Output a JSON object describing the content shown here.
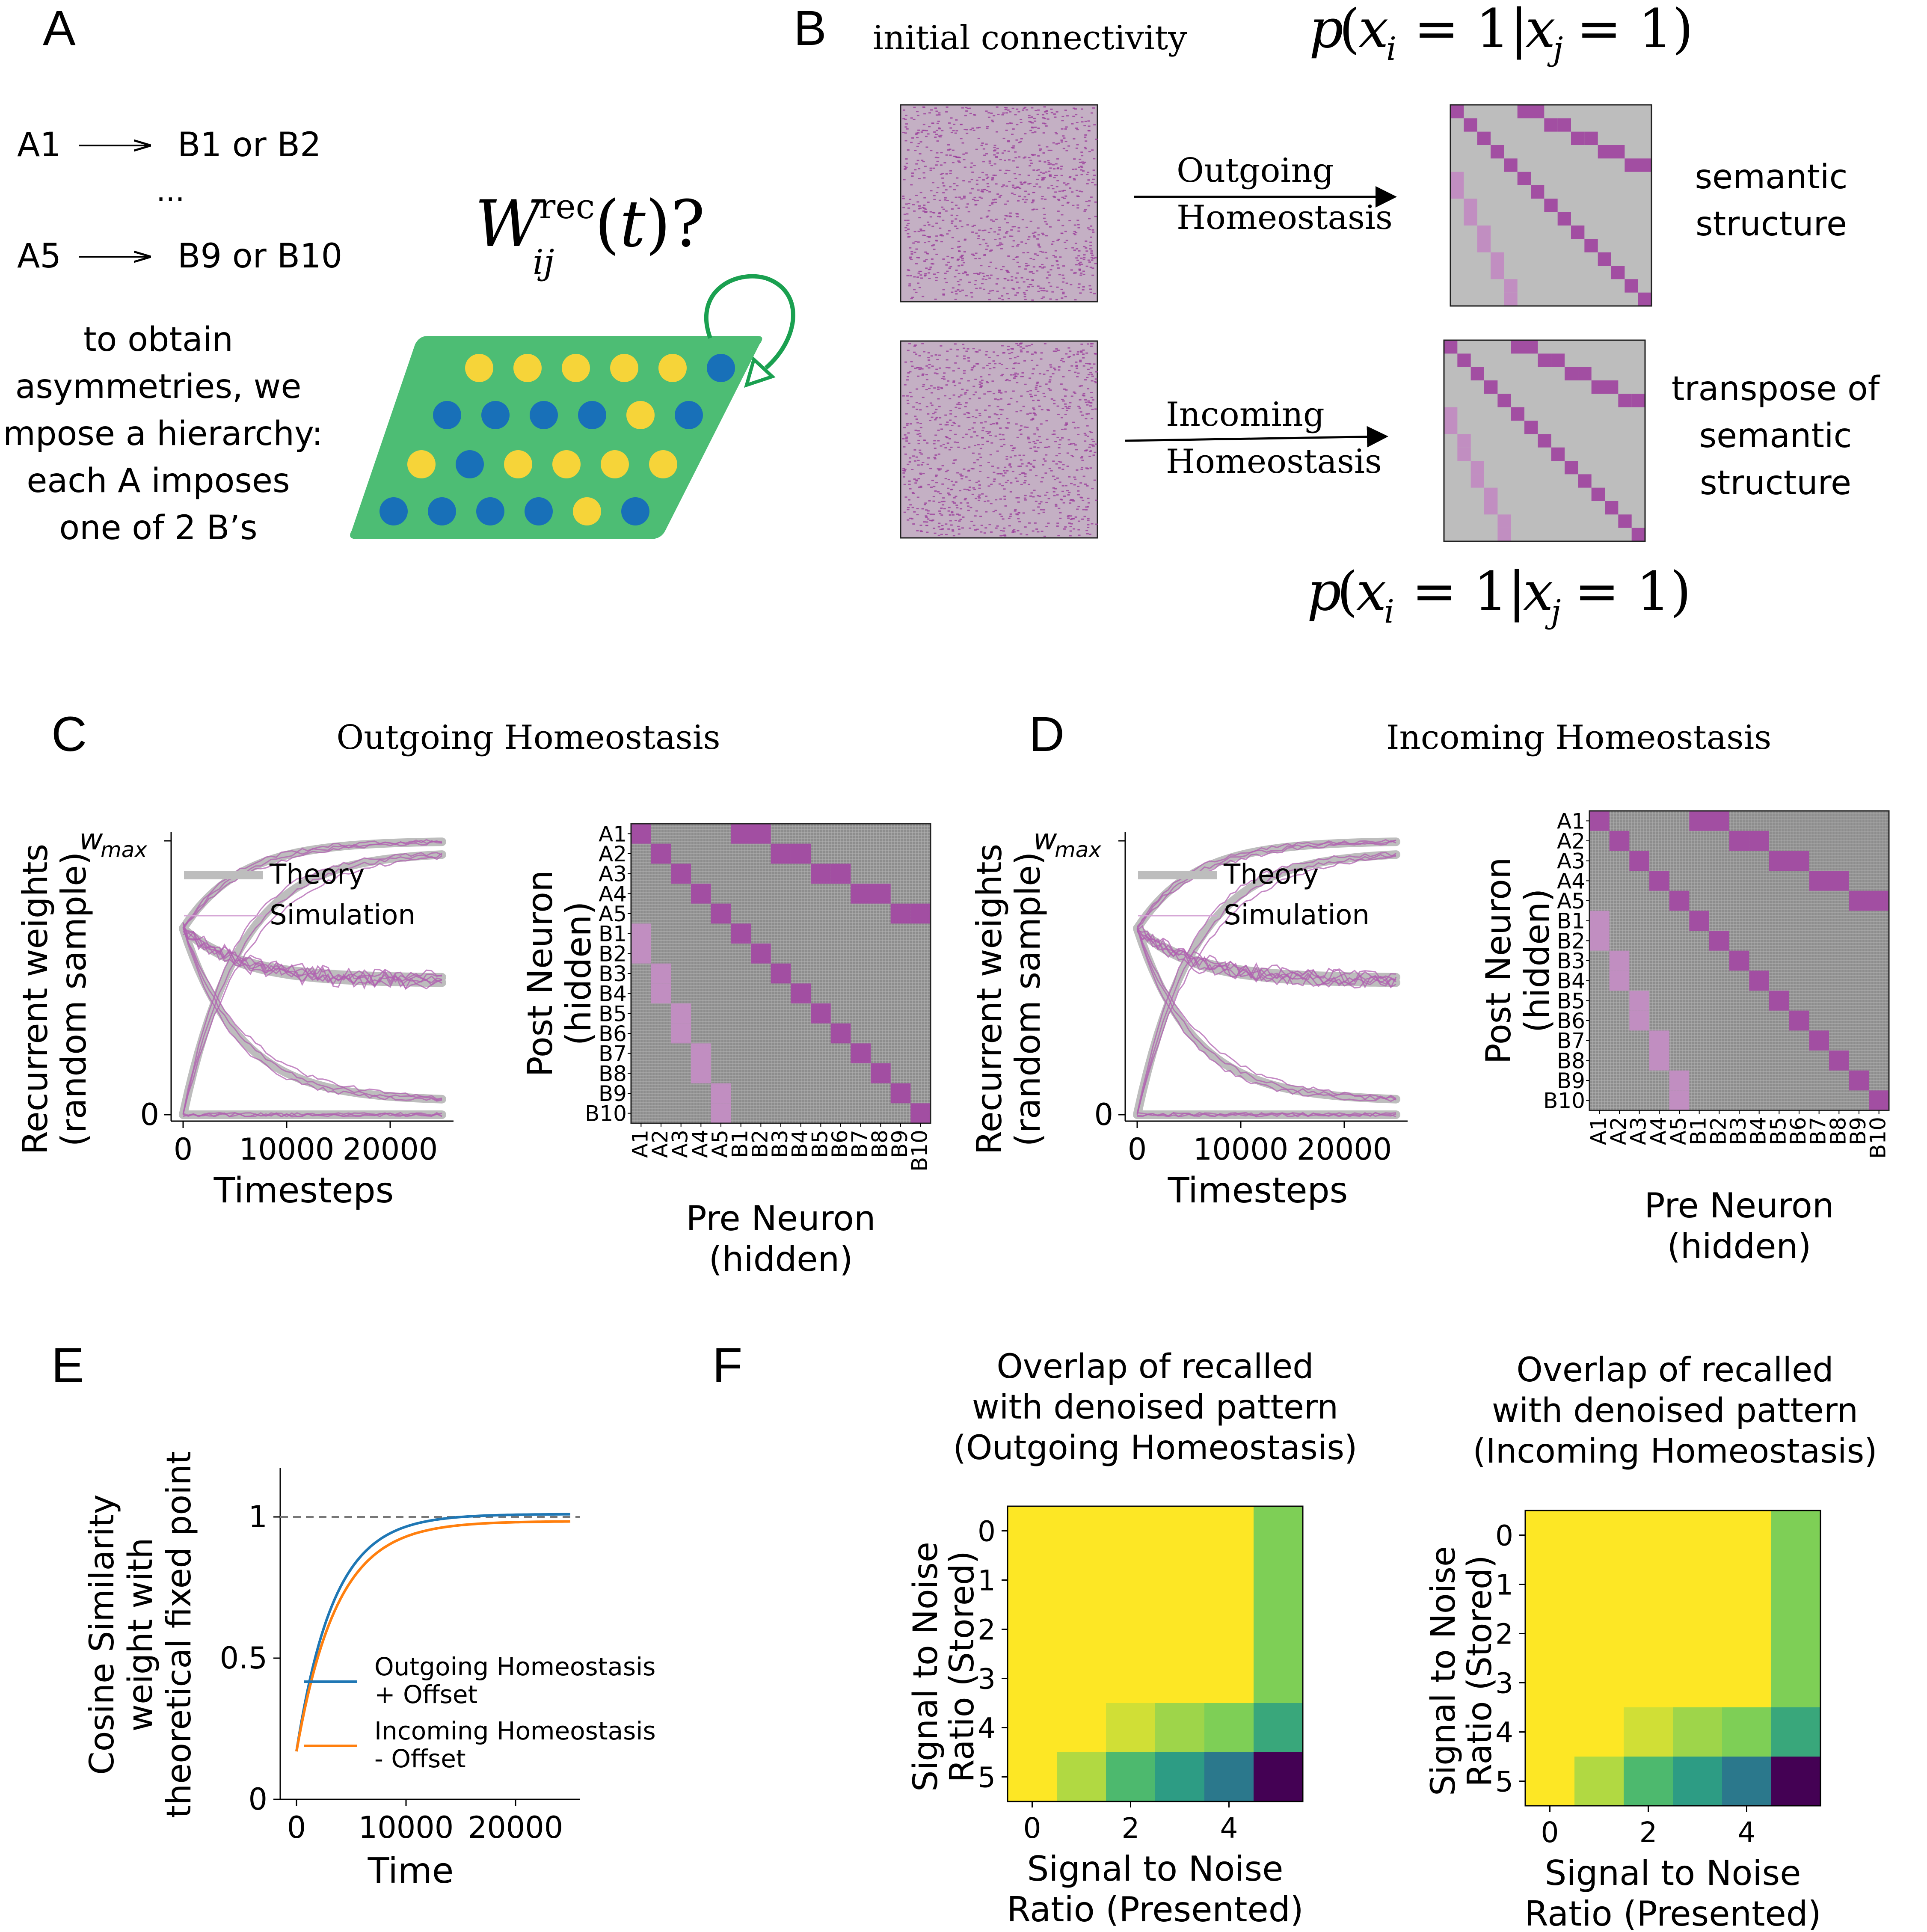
{
  "colors": {
    "magenta": "#a855a8",
    "magenta_light": "#c58fc5",
    "gray": "#bdbdbd",
    "green": "#4dbd74",
    "yellow": "#f6d439",
    "blue": "#1870b8",
    "outgoing_line": "#1f77b4",
    "incoming_line": "#ff7f0e"
  },
  "panel_A": {
    "letter": "A",
    "rule1_left": "A1",
    "rule1_right": "B1 or B2",
    "ellipsis": "...",
    "rule2_left": "A5",
    "rule2_right": "B9 or B10",
    "text_lines": [
      "to obtain",
      "asymmetries, we",
      "impose a hierarchy:",
      "each A imposes",
      "one of 2 B’s"
    ],
    "weight_label": "W_ij^rec(t)?",
    "dots": [
      [
        "yellow",
        "yellow",
        "yellow",
        "yellow",
        "yellow",
        "blue"
      ],
      [
        "blue",
        "blue",
        "blue",
        "blue",
        "yellow",
        "blue"
      ],
      [
        "yellow",
        "blue",
        "yellow",
        "yellow",
        "yellow",
        "yellow"
      ],
      [
        "blue",
        "blue",
        "blue",
        "blue",
        "yellow",
        "blue"
      ]
    ]
  },
  "panel_B": {
    "letter": "B",
    "initial_label": "initial connectivity",
    "prob_top": "p(x_i = 1|x_j = 1)",
    "prob_bottom": "p(x_i = 1|x_j = 1)",
    "arrow_top_l1": "Outgoing",
    "arrow_top_l2": "Homeostasis",
    "arrow_bottom_l1": "Incoming",
    "arrow_bottom_l2": "Homeostasis",
    "right_top": [
      "semantic",
      "structure"
    ],
    "right_bottom": [
      "transpose of",
      "semantic",
      "structure"
    ]
  },
  "panel_C": {
    "letter": "C",
    "title": "Outgoing Homeostasis",
    "ylabel_l1": "Recurrent weights",
    "ylabel_l2": "(random sample)",
    "xlabel": "Timesteps",
    "ytick_top": "w",
    "ytick_top_sub": "max",
    "ytick_zero": "0",
    "xticks": [
      "0",
      "10000",
      "20000"
    ],
    "legend_theory": "Theory",
    "legend_sim": "Simulation",
    "heat_ylabel_l1": "Post Neuron",
    "heat_ylabel_l2": "(hidden)",
    "heat_xlabel_l1": "Pre Neuron",
    "heat_xlabel_l2": "(hidden)",
    "heat_labels": [
      "A1",
      "A2",
      "A3",
      "A4",
      "A5",
      "B1",
      "B2",
      "B3",
      "B4",
      "B5",
      "B6",
      "B7",
      "B8",
      "B9",
      "B10"
    ]
  },
  "panel_D": {
    "letter": "D",
    "title": "Incoming Homeostasis",
    "ylabel_l1": "Recurrent weights",
    "ylabel_l2": "(random sample)",
    "xlabel": "Timesteps",
    "ytick_top": "w",
    "ytick_top_sub": "max",
    "ytick_zero": "0",
    "xticks": [
      "0",
      "10000",
      "20000"
    ],
    "legend_theory": "Theory",
    "legend_sim": "Simulation",
    "heat_ylabel_l1": "Post Neuron",
    "heat_ylabel_l2": "(hidden)",
    "heat_xlabel_l1": "Pre Neuron",
    "heat_xlabel_l2": "(hidden)",
    "heat_labels": [
      "A1",
      "A2",
      "A3",
      "A4",
      "A5",
      "B1",
      "B2",
      "B3",
      "B4",
      "B5",
      "B6",
      "B7",
      "B8",
      "B9",
      "B10"
    ]
  },
  "panel_E": {
    "letter": "E",
    "ylabel_l1": "Cosine Similarity",
    "ylabel_l2": "weight with",
    "ylabel_l3": "theoretical fixed point",
    "xlabel": "Time",
    "yticks": [
      "0",
      "0.5",
      "1"
    ],
    "xticks": [
      "0",
      "10000",
      "20000"
    ],
    "legend1_l1": "Outgoing Homeostasis",
    "legend1_l2": "+ Offset",
    "legend2_l1": "Incoming Homeostasis",
    "legend2_l2": "- Offset"
  },
  "panel_F": {
    "letter": "F",
    "left_title": [
      "Overlap of recalled",
      "with denoised pattern",
      "(Outgoing Homeostasis)"
    ],
    "right_title": [
      "Overlap of recalled",
      "with denoised pattern",
      "(Incoming Homeostasis)"
    ],
    "ylabel_l1": "Signal to Noise",
    "ylabel_l2": "Ratio (Stored)",
    "xlabel_l1": "Signal to Noise",
    "xlabel_l2": "Ratio (Presented)",
    "yticks": [
      "0",
      "1",
      "2",
      "3",
      "4",
      "5"
    ],
    "xticks": [
      "0",
      "2",
      "4"
    ]
  },
  "chart_data": [
    {
      "type": "line",
      "panel": "C",
      "title": "Outgoing Homeostasis",
      "xlabel": "Timesteps",
      "ylabel": "Recurrent weights (random sample)",
      "xlim": [
        0,
        25000
      ],
      "series": [
        {
          "name": "Theory",
          "x": [
            0,
            5000,
            10000,
            15000,
            20000,
            25000
          ],
          "y": [
            0.68,
            0.86,
            0.93,
            0.96,
            0.98,
            0.99
          ]
        },
        {
          "name": "Simulation",
          "x": [
            0,
            5000,
            10000,
            15000,
            20000,
            25000
          ],
          "y": [
            0.68,
            0.55,
            0.51,
            0.5,
            0.5,
            0.5
          ]
        }
      ]
    },
    {
      "type": "heatmap",
      "panel": "C",
      "xlabel": "Pre Neuron (hidden)",
      "ylabel": "Post Neuron (hidden)",
      "categories": [
        "A1",
        "A2",
        "A3",
        "A4",
        "A5",
        "B1",
        "B2",
        "B3",
        "B4",
        "B5",
        "B6",
        "B7",
        "B8",
        "B9",
        "B10"
      ]
    },
    {
      "type": "line",
      "panel": "D",
      "title": "Incoming Homeostasis",
      "xlabel": "Timesteps",
      "ylabel": "Recurrent weights (random sample)",
      "xlim": [
        0,
        25000
      ],
      "series": [
        {
          "name": "Theory",
          "x": [
            0,
            5000,
            10000,
            15000,
            20000,
            25000
          ],
          "y": [
            0.68,
            0.86,
            0.93,
            0.96,
            0.98,
            0.99
          ]
        },
        {
          "name": "Simulation",
          "x": [
            0,
            5000,
            10000,
            15000,
            20000,
            25000
          ],
          "y": [
            0.68,
            0.53,
            0.5,
            0.49,
            0.49,
            0.49
          ]
        }
      ]
    },
    {
      "type": "heatmap",
      "panel": "D",
      "xlabel": "Pre Neuron (hidden)",
      "ylabel": "Post Neuron (hidden)",
      "categories": [
        "A1",
        "A2",
        "A3",
        "A4",
        "A5",
        "B1",
        "B2",
        "B3",
        "B4",
        "B5",
        "B6",
        "B7",
        "B8",
        "B9",
        "B10"
      ]
    },
    {
      "type": "line",
      "panel": "E",
      "xlabel": "Time",
      "ylabel": "Cosine Similarity weight with theoretical fixed point",
      "xlim": [
        0,
        25000
      ],
      "ylim": [
        0,
        1.05
      ],
      "series": [
        {
          "name": "Outgoing Homeostasis + Offset",
          "x": [
            0,
            2500,
            5000,
            7500,
            10000,
            12500,
            15000,
            20000,
            25000
          ],
          "y": [
            0.17,
            0.55,
            0.8,
            0.92,
            0.97,
            0.99,
            1.0,
            1.01,
            1.01
          ]
        },
        {
          "name": "Incoming Homeostasis - Offset",
          "x": [
            0,
            2500,
            5000,
            7500,
            10000,
            12500,
            15000,
            20000,
            25000
          ],
          "y": [
            0.16,
            0.52,
            0.76,
            0.89,
            0.94,
            0.96,
            0.97,
            0.98,
            0.985
          ]
        }
      ]
    },
    {
      "type": "heatmap",
      "panel": "F",
      "title": "Overlap of recalled with denoised pattern (Outgoing Homeostasis)",
      "xlabel": "Signal to Noise Ratio (Presented)",
      "ylabel": "Signal to Noise Ratio (Stored)",
      "values": [
        [
          1.0,
          1.0,
          1.0,
          1.0,
          1.0,
          0.8
        ],
        [
          1.0,
          1.0,
          1.0,
          1.0,
          1.0,
          0.8
        ],
        [
          1.0,
          1.0,
          1.0,
          1.0,
          1.0,
          0.8
        ],
        [
          1.0,
          1.0,
          1.0,
          1.0,
          1.0,
          0.8
        ],
        [
          1.0,
          1.0,
          0.93,
          0.85,
          0.8,
          0.6
        ],
        [
          1.0,
          0.88,
          0.68,
          0.55,
          0.4,
          0.0
        ]
      ]
    },
    {
      "type": "heatmap",
      "panel": "F",
      "title": "Overlap of recalled with denoised pattern (Incoming Homeostasis)",
      "xlabel": "Signal to Noise Ratio (Presented)",
      "ylabel": "Signal to Noise Ratio (Stored)",
      "values": [
        [
          1.0,
          1.0,
          1.0,
          1.0,
          1.0,
          0.8
        ],
        [
          1.0,
          1.0,
          1.0,
          1.0,
          1.0,
          0.8
        ],
        [
          1.0,
          1.0,
          1.0,
          1.0,
          1.0,
          0.8
        ],
        [
          1.0,
          1.0,
          1.0,
          1.0,
          1.0,
          0.8
        ],
        [
          1.0,
          1.0,
          0.93,
          0.85,
          0.8,
          0.6
        ],
        [
          1.0,
          0.88,
          0.68,
          0.55,
          0.4,
          0.0
        ]
      ]
    }
  ]
}
